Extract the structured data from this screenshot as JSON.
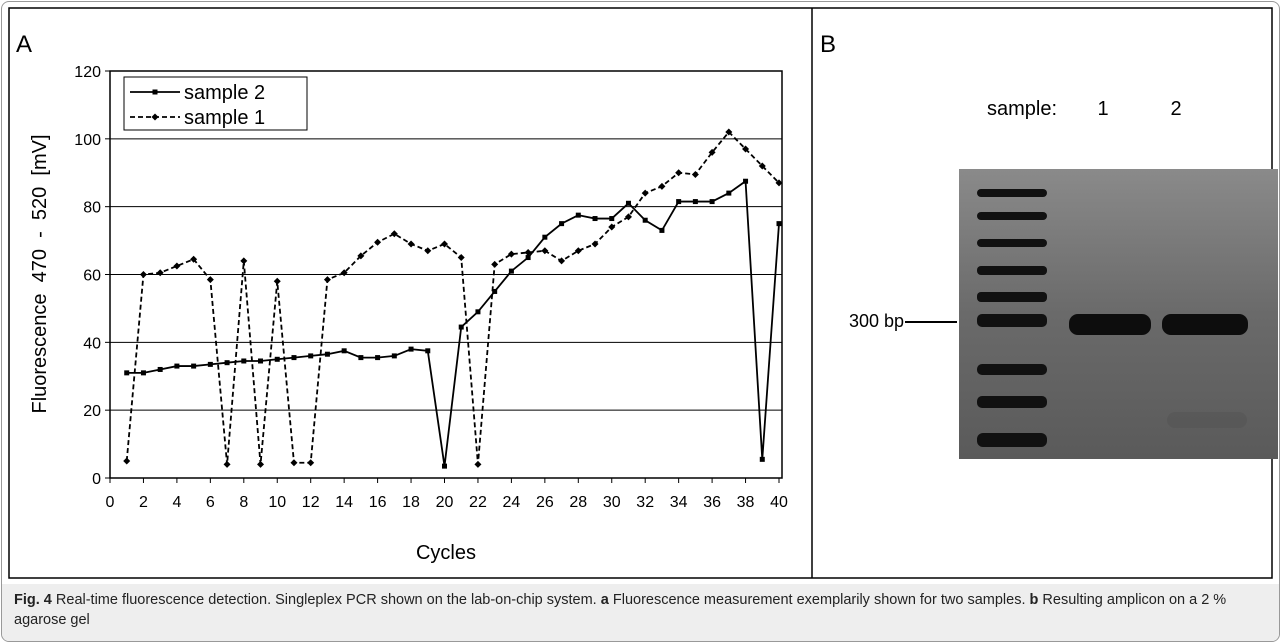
{
  "chart_data": {
    "type": "line",
    "panel_label": "A",
    "x_label": "Cycles",
    "y_label": "Fluorescence  470  -  520  [mV]",
    "x": [
      1,
      2,
      3,
      4,
      5,
      6,
      7,
      8,
      9,
      10,
      11,
      12,
      13,
      14,
      15,
      16,
      17,
      18,
      19,
      20,
      21,
      22,
      23,
      24,
      25,
      26,
      27,
      28,
      29,
      30,
      31,
      32,
      33,
      34,
      35,
      36,
      37,
      38,
      39,
      40
    ],
    "series": [
      {
        "name": "sample 2",
        "color": "#000000",
        "line_style": "solid",
        "marker": "square",
        "values": [
          31,
          31,
          32,
          33,
          33,
          33.5,
          34,
          34.5,
          34.5,
          35,
          35.5,
          36,
          36.5,
          37.5,
          35.5,
          35.5,
          36,
          38,
          37.5,
          3.5,
          44.5,
          49,
          55,
          61,
          65,
          71,
          75,
          77.5,
          76.5,
          76.5,
          81,
          76,
          73,
          81.5,
          81.5,
          81.5,
          84,
          87.5,
          5.5,
          75
        ]
      },
      {
        "name": "sample 1",
        "color": "#000000",
        "line_style": "dashed",
        "marker": "diamond",
        "values": [
          5,
          60,
          60.5,
          62.5,
          64.5,
          58.5,
          4,
          64,
          4,
          58,
          4.5,
          4.5,
          58.5,
          60.5,
          65.5,
          69.5,
          72,
          69,
          67,
          69,
          65,
          4,
          63,
          66,
          66.5,
          67,
          64,
          67,
          69,
          74,
          77,
          84,
          86,
          90,
          89.5,
          96,
          102,
          97,
          92,
          87
        ]
      }
    ],
    "xlim": [
      0,
      40
    ],
    "xticks": [
      0,
      2,
      4,
      6,
      8,
      10,
      12,
      14,
      16,
      18,
      20,
      22,
      24,
      26,
      28,
      30,
      32,
      34,
      36,
      38,
      40
    ],
    "ylim": [
      0,
      120
    ],
    "yticks": [
      0,
      20,
      40,
      60,
      80,
      100,
      120
    ],
    "grid": true,
    "legend": "top-left"
  },
  "gel": {
    "panel_label": "B",
    "lane_header": "sample:",
    "lanes": [
      "1",
      "2"
    ],
    "marker_label": "300 bp"
  },
  "caption": {
    "figure_label": "Fig. 4",
    "text": "Real-time fluorescence detection. Singleplex PCR shown on the lab-on-chip system.",
    "parts": [
      {
        "label": "a",
        "text": "Fluorescence measurement exemplarily shown for two samples."
      },
      {
        "label": "b",
        "text": "Resulting amplicon on a 2 % agarose gel"
      }
    ]
  }
}
